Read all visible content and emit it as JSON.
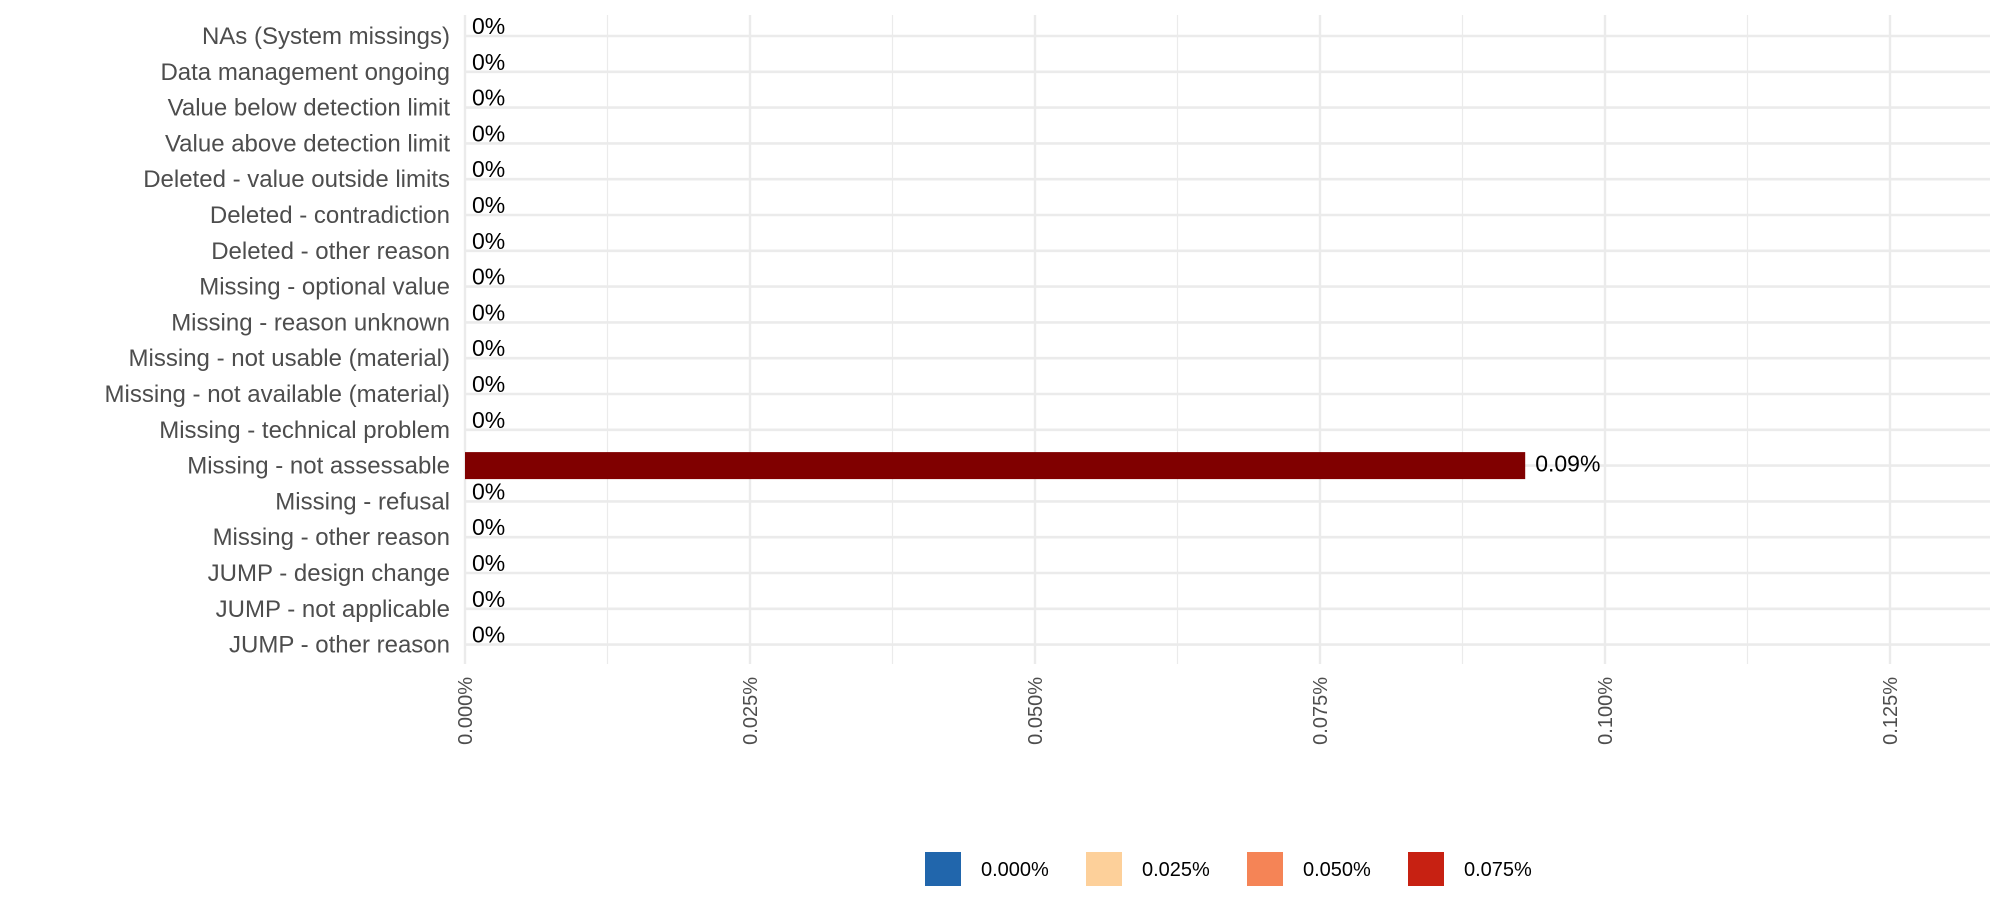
{
  "chart_data": {
    "type": "bar",
    "orientation": "horizontal",
    "title": "",
    "xlabel": "",
    "ylabel": "",
    "categories": [
      "NAs (System missings)",
      "Data management ongoing",
      "Value below detection limit",
      "Value above detection limit",
      "Deleted - value outside limits",
      "Deleted - contradiction",
      "Deleted - other reason",
      "Missing - optional value",
      "Missing - reason unknown",
      "Missing - not usable (material)",
      "Missing - not available (material)",
      "Missing - technical problem",
      "Missing - not assessable",
      "Missing - refusal",
      "Missing - other reason",
      "JUMP - design change",
      "JUMP - not applicable",
      "JUMP - other reason"
    ],
    "values": [
      0,
      0,
      0,
      0,
      0,
      0,
      0,
      0,
      0,
      0,
      0,
      0,
      0.093,
      0,
      0,
      0,
      0,
      0
    ],
    "data_labels": [
      "0%",
      "0%",
      "0%",
      "0%",
      "0%",
      "0%",
      "0%",
      "0%",
      "0%",
      "0%",
      "0%",
      "0%",
      "0.09%",
      "0%",
      "0%",
      "0%",
      "0%",
      "0%"
    ],
    "bar_color": "#800000",
    "xlim": [
      0,
      0.13
    ],
    "x_ticks": [
      0,
      0.025,
      0.05,
      0.075,
      0.1,
      0.125
    ],
    "x_tick_labels": [
      "0.000%",
      "0.025%",
      "0.050%",
      "0.075%",
      "0.100%",
      "0.125%"
    ],
    "grid": true,
    "legend": {
      "position": "bottom",
      "entries": [
        {
          "label": "0.000%",
          "color": "#2166AC"
        },
        {
          "label": "0.025%",
          "color": "#FDD09A"
        },
        {
          "label": "0.050%",
          "color": "#F58456"
        },
        {
          "label": "0.075%",
          "color": "#C72112"
        }
      ]
    }
  }
}
